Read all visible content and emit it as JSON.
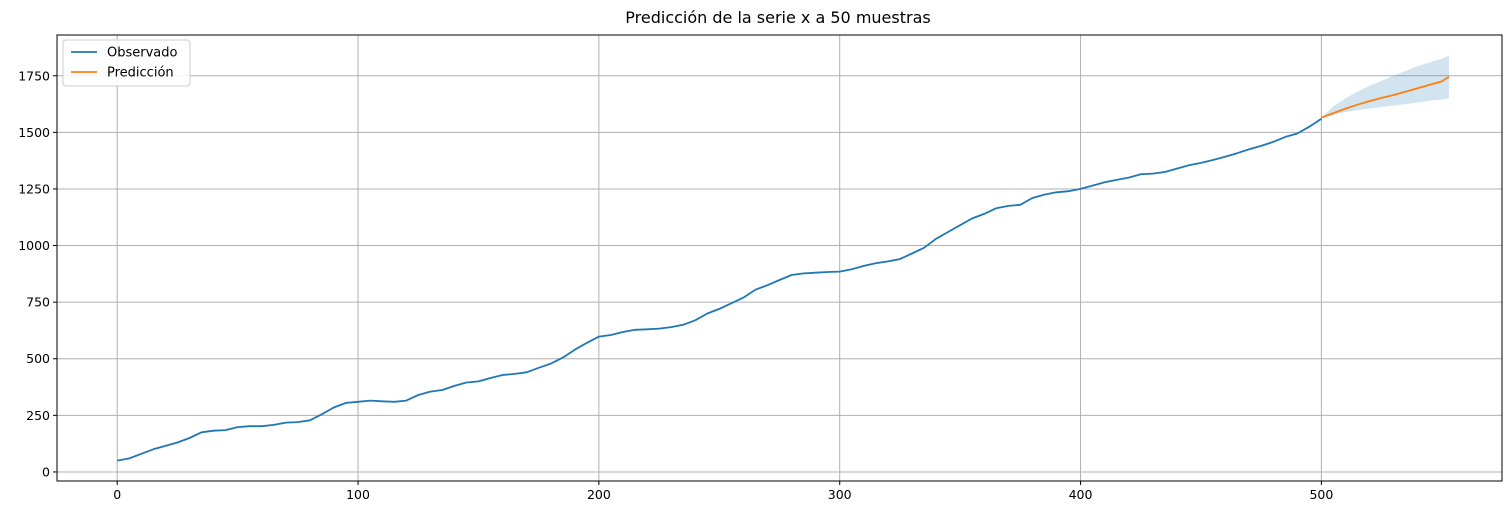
{
  "chart_data": {
    "type": "line",
    "title": "Predicción de la serie x a 50 muestras",
    "xlabel": "",
    "ylabel": "",
    "xlim": [
      -25,
      575
    ],
    "ylim": [
      -40,
      1930
    ],
    "x_ticks": [
      0,
      100,
      200,
      300,
      400,
      500
    ],
    "y_ticks": [
      0,
      250,
      500,
      750,
      1000,
      1250,
      1500,
      1750
    ],
    "grid": true,
    "legend_position": "top-left",
    "series": [
      {
        "name": "Observado",
        "color": "#1f77b4",
        "points": [
          [
            0,
            50
          ],
          [
            5,
            60
          ],
          [
            10,
            80
          ],
          [
            15,
            100
          ],
          [
            20,
            115
          ],
          [
            25,
            130
          ],
          [
            30,
            150
          ],
          [
            35,
            175
          ],
          [
            40,
            182
          ],
          [
            45,
            185
          ],
          [
            50,
            198
          ],
          [
            55,
            202
          ],
          [
            60,
            202
          ],
          [
            65,
            208
          ],
          [
            70,
            218
          ],
          [
            75,
            220
          ],
          [
            80,
            228
          ],
          [
            85,
            255
          ],
          [
            90,
            285
          ],
          [
            95,
            305
          ],
          [
            100,
            310
          ],
          [
            105,
            315
          ],
          [
            110,
            312
          ],
          [
            115,
            310
          ],
          [
            120,
            315
          ],
          [
            125,
            340
          ],
          [
            130,
            355
          ],
          [
            135,
            362
          ],
          [
            140,
            380
          ],
          [
            145,
            395
          ],
          [
            150,
            400
          ],
          [
            155,
            415
          ],
          [
            160,
            428
          ],
          [
            165,
            433
          ],
          [
            170,
            440
          ],
          [
            175,
            460
          ],
          [
            180,
            478
          ],
          [
            185,
            505
          ],
          [
            190,
            540
          ],
          [
            195,
            570
          ],
          [
            200,
            598
          ],
          [
            205,
            605
          ],
          [
            210,
            618
          ],
          [
            215,
            628
          ],
          [
            220,
            630
          ],
          [
            225,
            633
          ],
          [
            230,
            640
          ],
          [
            235,
            650
          ],
          [
            240,
            670
          ],
          [
            245,
            700
          ],
          [
            250,
            720
          ],
          [
            255,
            745
          ],
          [
            260,
            770
          ],
          [
            265,
            805
          ],
          [
            270,
            825
          ],
          [
            275,
            848
          ],
          [
            280,
            870
          ],
          [
            285,
            877
          ],
          [
            290,
            880
          ],
          [
            295,
            883
          ],
          [
            300,
            885
          ],
          [
            305,
            895
          ],
          [
            310,
            910
          ],
          [
            315,
            922
          ],
          [
            320,
            930
          ],
          [
            325,
            940
          ],
          [
            330,
            965
          ],
          [
            335,
            990
          ],
          [
            340,
            1030
          ],
          [
            345,
            1060
          ],
          [
            350,
            1090
          ],
          [
            355,
            1120
          ],
          [
            360,
            1140
          ],
          [
            365,
            1165
          ],
          [
            370,
            1175
          ],
          [
            375,
            1180
          ],
          [
            380,
            1210
          ],
          [
            385,
            1225
          ],
          [
            390,
            1235
          ],
          [
            395,
            1240
          ],
          [
            400,
            1250
          ],
          [
            405,
            1265
          ],
          [
            410,
            1280
          ],
          [
            415,
            1290
          ],
          [
            420,
            1300
          ],
          [
            425,
            1315
          ],
          [
            430,
            1318
          ],
          [
            435,
            1325
          ],
          [
            440,
            1340
          ],
          [
            445,
            1355
          ],
          [
            450,
            1365
          ],
          [
            455,
            1378
          ],
          [
            460,
            1392
          ],
          [
            465,
            1408
          ],
          [
            470,
            1425
          ],
          [
            475,
            1440
          ],
          [
            480,
            1458
          ],
          [
            485,
            1480
          ],
          [
            490,
            1495
          ],
          [
            495,
            1525
          ],
          [
            500,
            1560
          ]
        ]
      },
      {
        "name": "Predicción",
        "color": "#ff7f0e",
        "points": [
          [
            500,
            1565
          ],
          [
            505,
            1585
          ],
          [
            510,
            1605
          ],
          [
            515,
            1622
          ],
          [
            520,
            1638
          ],
          [
            525,
            1652
          ],
          [
            530,
            1665
          ],
          [
            535,
            1680
          ],
          [
            540,
            1695
          ],
          [
            545,
            1710
          ],
          [
            550,
            1725
          ],
          [
            553,
            1745
          ]
        ]
      }
    ],
    "confidence_band": {
      "color": "#1f77b4",
      "x": [
        500,
        505,
        510,
        515,
        520,
        525,
        530,
        535,
        540,
        545,
        550,
        553
      ],
      "lower": [
        1565,
        1578,
        1590,
        1598,
        1605,
        1612,
        1618,
        1625,
        1632,
        1640,
        1645,
        1650
      ],
      "upper": [
        1565,
        1615,
        1650,
        1680,
        1705,
        1728,
        1750,
        1772,
        1792,
        1810,
        1825,
        1840
      ]
    }
  }
}
